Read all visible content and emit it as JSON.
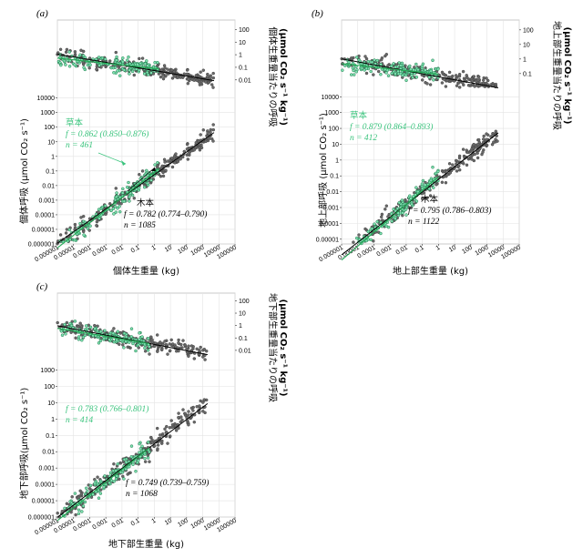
{
  "colors": {
    "herb": "#3cc47e",
    "herb_line": "#22aa55",
    "wood": "#555555",
    "fit": "#000000"
  },
  "chart_data": [
    {
      "type": "scatter",
      "panel": "(a)",
      "xlabel": "個体生重量 (kg)",
      "ylabel_bottom": "個体呼吸 (μmol CO₂ s⁻¹)",
      "ylabel_top": [
        "個体生重量当たりの呼吸",
        "(μmol CO₂ s⁻¹ kg⁻¹)"
      ],
      "x_ticks": [
        "0.000001",
        "0.00001",
        "0.0001",
        "0.001",
        "0.01",
        "0.1",
        "1",
        "10",
        "100",
        "1000",
        "10000",
        "100000"
      ],
      "y_ticks_bottom": [
        "0.000001",
        "0.00001",
        "0.0001",
        "0.001",
        "0.01",
        "0.1",
        "1",
        "10",
        "100",
        "1000",
        "10000"
      ],
      "y_ticks_top": [
        "100",
        "10",
        "1",
        "0.1",
        "0.01"
      ],
      "xlim": [
        1e-06,
        100000.0
      ],
      "ylim_bottom": [
        1e-06,
        30000.0
      ],
      "ylim_top": [
        0.003,
        150
      ],
      "log_x": true,
      "log_y": true,
      "herb": {
        "label": "草本",
        "f": "f = 0.862 (0.850–0.876)",
        "n": "n = 461",
        "f_value": 0.862,
        "n_value": 461,
        "x_range": [
          1e-06,
          2
        ],
        "intercept": 0.08
      },
      "wood": {
        "label": "木本",
        "f": "f = 0.782 (0.774–0.790)",
        "n": "n = 1085",
        "f_value": 0.782,
        "n_value": 1085,
        "x_range": [
          1e-06,
          5000
        ],
        "intercept": 0.055
      }
    },
    {
      "type": "scatter",
      "panel": "(b)",
      "xlabel": "地上部生重量 (kg)",
      "ylabel_bottom": "地上部呼吸 (μmol CO₂ s⁻¹)",
      "ylabel_top": [
        "地上部生重量当たりの呼吸",
        "(μmol CO₂ s⁻¹ kg⁻¹)"
      ],
      "x_ticks": [
        "0.000001",
        "0.00001",
        "0.0001",
        "0.001",
        "0.01",
        "0.1",
        "1",
        "10",
        "100",
        "1000",
        "10000",
        "100000"
      ],
      "y_ticks_bottom": [
        "0.00001",
        "0.0001",
        "0.001",
        "0.01",
        "0.1",
        "1",
        "10",
        "100",
        "1000",
        "10000"
      ],
      "y_ticks_top": [
        "100",
        "10",
        "1",
        "0.1"
      ],
      "xlim": [
        1e-06,
        100000.0
      ],
      "ylim_bottom": [
        5e-06,
        30000.0
      ],
      "ylim_top": [
        0.02,
        150
      ],
      "log_x": true,
      "log_y": true,
      "herb": {
        "label": "草本",
        "f": "f = 0.879 (0.864–0.893)",
        "n": "n = 412",
        "f_value": 0.879,
        "n_value": 412,
        "x_range": [
          1e-06,
          1
        ],
        "intercept": 0.09
      },
      "wood": {
        "label": "木本",
        "f": "f = 0.795 (0.786–0.803)",
        "n": "n = 1122",
        "f_value": 0.795,
        "n_value": 1122,
        "x_range": [
          1e-06,
          5000
        ],
        "intercept": 0.06
      }
    },
    {
      "type": "scatter",
      "panel": "(c)",
      "xlabel": "地下部生重量 (kg)",
      "ylabel_bottom": "地下部呼吸(μmol CO₂ s⁻¹)",
      "ylabel_top": [
        "地下部生重量当たりの呼吸",
        "(μmol CO₂ s⁻¹ kg⁻¹)"
      ],
      "x_ticks": [
        "0.000001",
        "0.00001",
        "0.0001",
        "0.001",
        "0.01",
        "0.1",
        "1",
        "10",
        "100",
        "1000",
        "10000",
        "100000"
      ],
      "y_ticks_bottom": [
        "0.000001",
        "0.00001",
        "0.0001",
        "0.001",
        "0.01",
        "0.1",
        "1",
        "10",
        "100",
        "1000"
      ],
      "y_ticks_top": [
        "100",
        "10",
        "1",
        "0.1",
        "0.01"
      ],
      "xlim": [
        1e-06,
        100000.0
      ],
      "ylim_bottom": [
        1e-06,
        3000.0
      ],
      "ylim_top": [
        0.003,
        150
      ],
      "log_x": true,
      "log_y": true,
      "herb": {
        "label": "",
        "f": "f = 0.783 (0.766–0.801)",
        "n": "n = 414",
        "f_value": 0.783,
        "n_value": 414,
        "x_range": [
          1e-06,
          0.5
        ],
        "intercept": 0.03
      },
      "wood": {
        "label": "",
        "f": "f = 0.749 (0.739–0.759)",
        "n": "n = 1068",
        "f_value": 0.749,
        "n_value": 1068,
        "x_range": [
          1e-06,
          2000
        ],
        "intercept": 0.03
      }
    }
  ]
}
